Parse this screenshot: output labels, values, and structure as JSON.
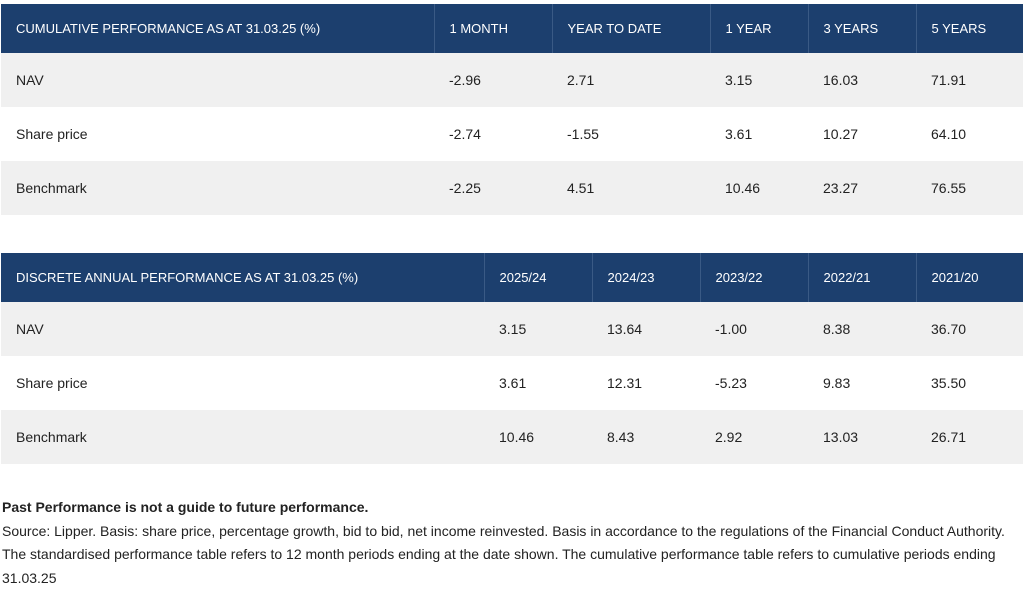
{
  "cumulative": {
    "headers": [
      "CUMULATIVE PERFORMANCE AS AT 31.03.25 (%)",
      "1 MONTH",
      "YEAR TO DATE",
      "1 YEAR",
      "3 YEARS",
      "5 YEARS"
    ],
    "rows": [
      {
        "label": "NAV",
        "values": [
          "-2.96",
          "2.71",
          "3.15",
          "16.03",
          "71.91"
        ]
      },
      {
        "label": "Share price",
        "values": [
          "-2.74",
          "-1.55",
          "3.61",
          "10.27",
          "64.10"
        ]
      },
      {
        "label": "Benchmark",
        "values": [
          "-2.25",
          "4.51",
          "10.46",
          "23.27",
          "76.55"
        ]
      }
    ]
  },
  "discrete": {
    "headers": [
      "DISCRETE ANNUAL PERFORMANCE AS AT 31.03.25 (%)",
      "2025/24",
      "2024/23",
      "2023/22",
      "2022/21",
      "2021/20"
    ],
    "rows": [
      {
        "label": "NAV",
        "values": [
          "3.15",
          "13.64",
          "-1.00",
          "8.38",
          "36.70"
        ]
      },
      {
        "label": "Share price",
        "values": [
          "3.61",
          "12.31",
          "-5.23",
          "9.83",
          "35.50"
        ]
      },
      {
        "label": "Benchmark",
        "values": [
          "10.46",
          "8.43",
          "2.92",
          "13.03",
          "26.71"
        ]
      }
    ]
  },
  "notes": {
    "disclaimer": "Past Performance is not a guide to future performance.",
    "source": "Source: Lipper. Basis: share price, percentage growth, bid to bid, net income reinvested. Basis in accordance to the regulations of the Financial Conduct Authority.",
    "standardised": "The standardised performance table refers to 12 month periods ending at the date shown. The cumulative performance table refers to cumulative periods ending 31.03.25"
  }
}
